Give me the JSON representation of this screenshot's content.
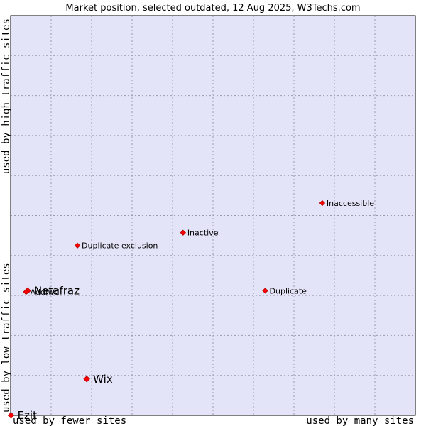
{
  "chart_data": {
    "type": "scatter",
    "title": "Market position, selected outdated, 12 Aug 2025, W3Techs.com",
    "xlabel_left": "used by fewer sites",
    "xlabel_right": "used by many sites",
    "ylabel_bottom": "used by low traffic sites",
    "ylabel_top": "used by high traffic sites",
    "xlim": [
      0,
      100
    ],
    "ylim": [
      0,
      100
    ],
    "grid": true,
    "colors": {
      "plot_background": "#e4e4f8",
      "grid": "#9a9ab0",
      "point": "#ff0000",
      "point_outline": "#b00000",
      "border": "#000000"
    },
    "points": [
      {
        "label": "Inaccessible",
        "x": 77.0,
        "y": 53.1,
        "size": "small"
      },
      {
        "label": "Inactive",
        "x": 42.6,
        "y": 45.7,
        "size": "small"
      },
      {
        "label": "Duplicate exclusion",
        "x": 16.5,
        "y": 42.5,
        "size": "small"
      },
      {
        "label": "Duplicate",
        "x": 62.9,
        "y": 31.2,
        "size": "small"
      },
      {
        "label": "Netafraz",
        "x": 4.2,
        "y": 31.2,
        "size": "large"
      },
      {
        "label": "Addfwd",
        "x": 3.8,
        "y": 30.9,
        "size": "small"
      },
      {
        "label": "Wix",
        "x": 18.8,
        "y": 9.1,
        "size": "large"
      },
      {
        "label": "Ezit",
        "x": 0.1,
        "y": 0.0,
        "size": "large"
      }
    ]
  }
}
